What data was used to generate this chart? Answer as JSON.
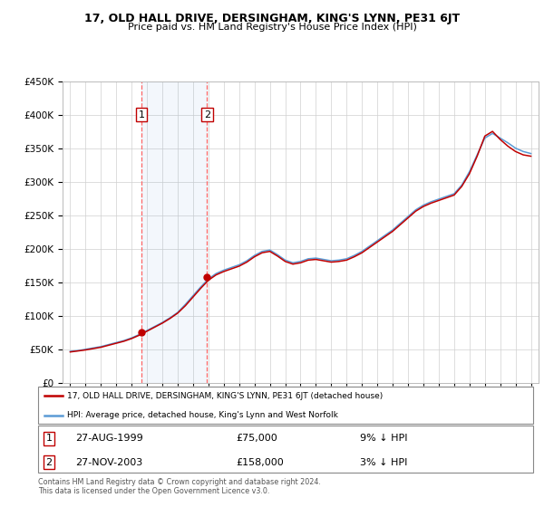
{
  "title": "17, OLD HALL DRIVE, DERSINGHAM, KING'S LYNN, PE31 6JT",
  "subtitle": "Price paid vs. HM Land Registry's House Price Index (HPI)",
  "footnote": "Contains HM Land Registry data © Crown copyright and database right 2024.\nThis data is licensed under the Open Government Licence v3.0.",
  "legend_line1": "17, OLD HALL DRIVE, DERSINGHAM, KING'S LYNN, PE31 6JT (detached house)",
  "legend_line2": "HPI: Average price, detached house, King's Lynn and West Norfolk",
  "sale1_label": "1",
  "sale1_date": "27-AUG-1999",
  "sale1_price": "£75,000",
  "sale1_hpi": "9% ↓ HPI",
  "sale2_label": "2",
  "sale2_date": "27-NOV-2003",
  "sale2_price": "£158,000",
  "sale2_hpi": "3% ↓ HPI",
  "sale1_year": 1999.65,
  "sale1_value": 75000,
  "sale2_year": 2003.9,
  "sale2_value": 158000,
  "hpi_color": "#5b9bd5",
  "price_color": "#c00000",
  "sale_marker_color": "#c00000",
  "ylim": [
    0,
    450000
  ],
  "xlim_start": 1994.5,
  "xlim_end": 2025.5,
  "background_color": "#ffffff",
  "grid_color": "#d0d0d0",
  "vline_color": "#ff6666",
  "annotation_box_color": "#c00000",
  "years": [
    1995,
    1995.5,
    1996,
    1996.5,
    1997,
    1997.5,
    1998,
    1998.5,
    1999,
    1999.5,
    2000,
    2000.5,
    2001,
    2001.5,
    2002,
    2002.5,
    2003,
    2003.5,
    2004,
    2004.5,
    2005,
    2005.5,
    2006,
    2006.5,
    2007,
    2007.5,
    2008,
    2008.5,
    2009,
    2009.5,
    2010,
    2010.5,
    2011,
    2011.5,
    2012,
    2012.5,
    2013,
    2013.5,
    2014,
    2014.5,
    2015,
    2015.5,
    2016,
    2016.5,
    2017,
    2017.5,
    2018,
    2018.5,
    2019,
    2019.5,
    2020,
    2020.5,
    2021,
    2021.5,
    2022,
    2022.5,
    2023,
    2023.5,
    2024,
    2024.5,
    2025
  ],
  "hpi_values": [
    47000,
    48000,
    50000,
    52000,
    54000,
    57000,
    60000,
    63000,
    67000,
    72000,
    78000,
    84000,
    90000,
    97000,
    105000,
    117000,
    130000,
    143000,
    155000,
    163000,
    168000,
    172000,
    176000,
    182000,
    190000,
    196000,
    198000,
    191000,
    183000,
    179000,
    181000,
    185000,
    186000,
    184000,
    182000,
    183000,
    185000,
    190000,
    196000,
    204000,
    212000,
    220000,
    228000,
    238000,
    248000,
    258000,
    265000,
    270000,
    274000,
    278000,
    282000,
    295000,
    315000,
    340000,
    365000,
    372000,
    365000,
    358000,
    350000,
    345000,
    342000
  ],
  "price_values": [
    46000,
    47500,
    49000,
    51000,
    53000,
    56000,
    59000,
    62000,
    66000,
    71000,
    77000,
    83000,
    89000,
    96000,
    104000,
    115000,
    128000,
    141000,
    153000,
    161000,
    166000,
    170000,
    174000,
    180000,
    188000,
    194000,
    196000,
    189000,
    181000,
    177000,
    179000,
    183000,
    184000,
    182000,
    180000,
    181000,
    183000,
    188000,
    194000,
    202000,
    210000,
    218000,
    226000,
    236000,
    246000,
    256000,
    263000,
    268000,
    272000,
    276000,
    280000,
    293000,
    312000,
    338000,
    368000,
    375000,
    363000,
    353000,
    345000,
    340000,
    338000
  ]
}
